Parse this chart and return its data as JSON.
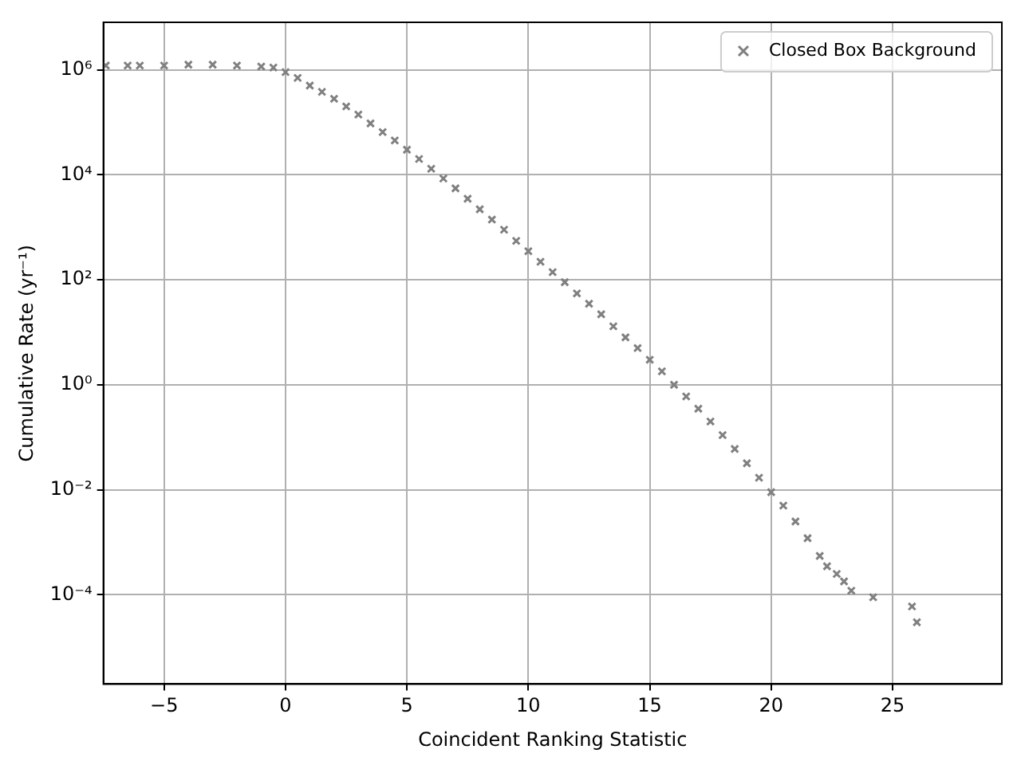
{
  "chart_data": {
    "type": "scatter",
    "xlabel": "Coincident Ranking Statistic",
    "ylabel": "Cumulative Rate (yr⁻¹)",
    "xlim": [
      -7.5,
      29.5
    ],
    "xticks": [
      {
        "value": -5,
        "label": "−5"
      },
      0,
      5,
      10,
      15,
      20,
      25
    ],
    "ylim": [
      2e-06,
      8000000.0
    ],
    "yticks": [
      {
        "value": 0.0001,
        "label": "10⁻⁴"
      },
      {
        "value": 0.01,
        "label": "10⁻²"
      },
      {
        "value": 1,
        "label": "10⁰"
      },
      {
        "value": 100,
        "label": "10²"
      },
      {
        "value": 10000,
        "label": "10⁴"
      },
      {
        "value": 1000000,
        "label": "10⁶"
      }
    ],
    "log": "y",
    "grid": true,
    "legend": "top right",
    "marker": "cross",
    "series": [
      {
        "name": "Closed Box Background",
        "color": "#808080",
        "x": [
          -7.4,
          -6.5,
          -6,
          -5,
          -4,
          -3,
          -2,
          -1,
          -0.5,
          0,
          0.5,
          1,
          1.5,
          2,
          2.5,
          3,
          3.5,
          4,
          4.5,
          5,
          5.5,
          6,
          6.5,
          7,
          7.5,
          8,
          8.5,
          9,
          9.5,
          10,
          10.5,
          11,
          11.5,
          12,
          12.5,
          13,
          13.5,
          14,
          14.5,
          15,
          15.5,
          16,
          16.5,
          17,
          17.5,
          18,
          18.5,
          19,
          19.5,
          20,
          20.5,
          21,
          21.5,
          22,
          22.3,
          22.7,
          23,
          23.3,
          24.2,
          25.8,
          26
        ],
        "values": [
          1200000,
          1200000,
          1200000,
          1200000,
          1250000,
          1250000,
          1200000,
          1150000,
          1100000,
          900000,
          700000,
          500000,
          380000,
          280000,
          200000,
          140000,
          95000,
          65000,
          45000,
          30000,
          20000,
          13000,
          8500,
          5500,
          3500,
          2200,
          1400,
          900,
          550,
          350,
          220,
          140,
          90,
          55,
          35,
          22,
          13,
          8,
          5,
          3,
          1.8,
          1,
          0.6,
          0.35,
          0.2,
          0.11,
          0.06,
          0.032,
          0.017,
          0.009,
          0.005,
          0.0025,
          0.0012,
          0.00055,
          0.00035,
          0.00025,
          0.00018,
          0.00012,
          9e-05,
          6e-05,
          3e-05
        ]
      }
    ]
  }
}
